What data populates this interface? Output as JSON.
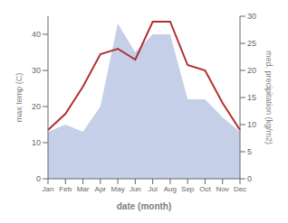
{
  "chart_data": {
    "type": "area",
    "categories": [
      "Jan",
      "Feb",
      "Mar",
      "Apr",
      "May",
      "Jun",
      "Jul",
      "Aug",
      "Sep",
      "Oct",
      "Nov",
      "Dec"
    ],
    "series": [
      {
        "type": "area",
        "color": "#c5cfe8",
        "values": [
          13,
          15,
          13,
          20,
          43,
          35,
          40,
          40,
          22,
          22,
          17,
          13
        ]
      },
      {
        "type": "line",
        "color": "#b03030",
        "axis": "y2",
        "values": [
          9,
          12,
          17,
          23,
          24,
          22,
          29,
          29,
          21,
          20,
          14,
          9
        ]
      }
    ],
    "xlabel": "date (month)",
    "ylabel": "max temp (C)",
    "y2label": "med. precipitation (kg/m2)",
    "ylim": [
      0,
      45
    ],
    "yticks": [
      0,
      10,
      20,
      30,
      40
    ],
    "y2lim": [
      0,
      30
    ],
    "y2ticks": [
      0,
      5,
      10,
      15,
      20,
      25,
      30
    ],
    "grid": false
  }
}
